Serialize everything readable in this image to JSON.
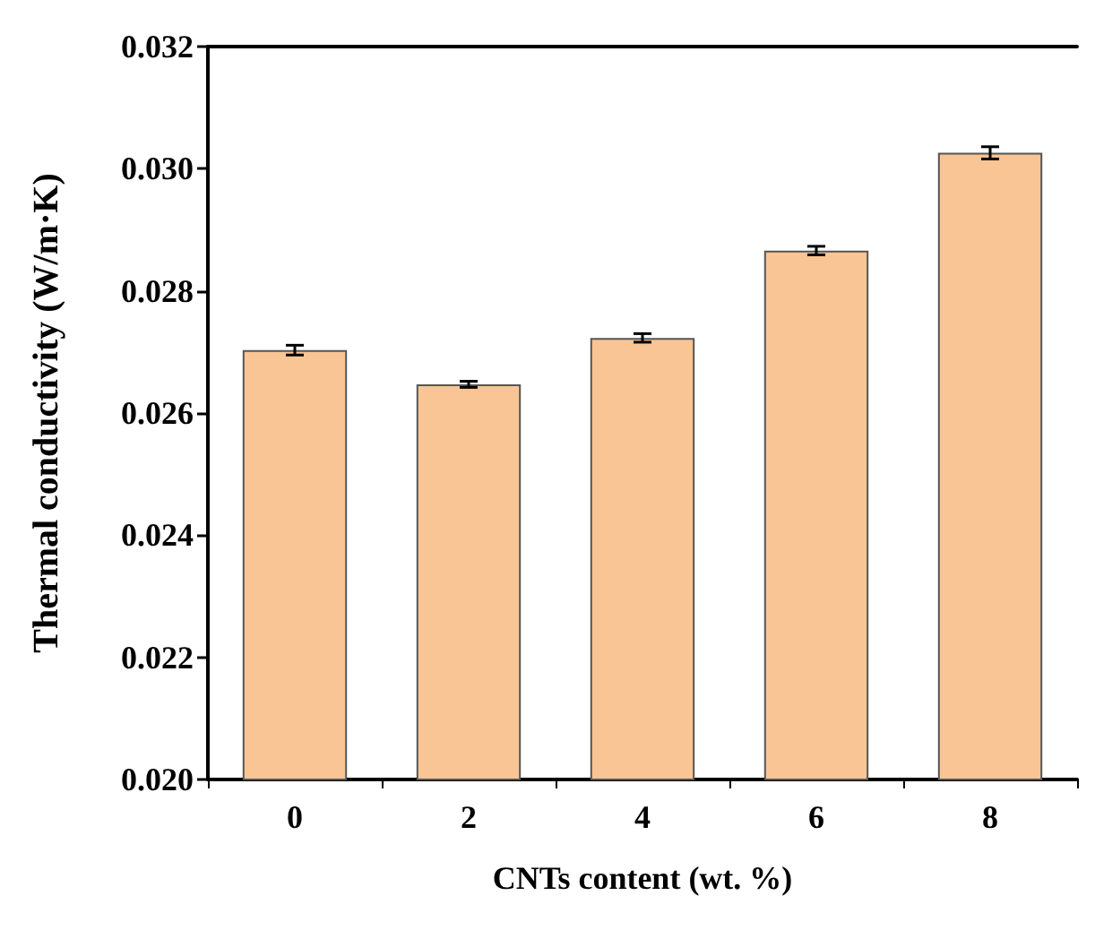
{
  "chart_data": {
    "type": "bar",
    "xlabel": "CNTs content (wt. %)",
    "ylabel": "Thermal conductivity (W/m·K)",
    "categories": [
      "0",
      "2",
      "4",
      "6",
      "8"
    ],
    "values": [
      0.02703,
      0.02647,
      0.02723,
      0.02866,
      0.03026
    ],
    "errors": [
      8e-05,
      5e-05,
      7e-05,
      7e-05,
      0.0001
    ],
    "color": "#f9c594",
    "ylim": [
      0.02,
      0.032
    ],
    "yticks": [
      {
        "value": 0.02,
        "label": "0.020"
      },
      0.022,
      0.024,
      0.026,
      0.028,
      {
        "value": 0.03,
        "label": "0.030"
      },
      0.032
    ],
    "tick_labels": "xy"
  }
}
